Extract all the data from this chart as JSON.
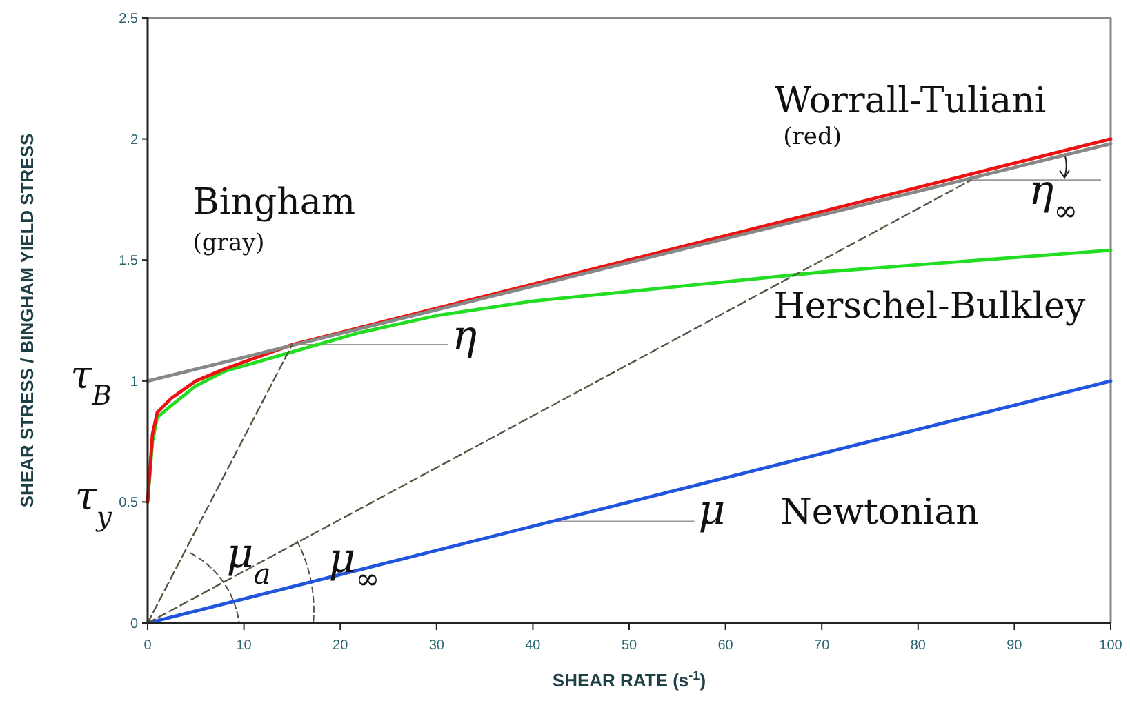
{
  "chart_data": {
    "type": "line",
    "xlabel": "SHEAR RATE (s$^{-1}$)",
    "ylabel": "SHEAR STRESS / BINGHAM YIELD STRESS",
    "xlim": [
      0,
      100
    ],
    "ylim": [
      0,
      2.5
    ],
    "xticks": [
      0,
      10,
      20,
      30,
      40,
      50,
      60,
      70,
      80,
      90,
      100
    ],
    "yticks": [
      0,
      0.5,
      1,
      1.5,
      2,
      2.5
    ],
    "grid": false,
    "marker": "none",
    "series": [
      {
        "name": "Herschel-Bulkley",
        "color": "#22dd22",
        "x": [
          0,
          0.5,
          1,
          2.5,
          5,
          8,
          15,
          22,
          30,
          40,
          50,
          60,
          70,
          80,
          90,
          100
        ],
        "values": [
          0.5,
          0.75,
          0.85,
          0.9,
          0.98,
          1.04,
          1.12,
          1.2,
          1.27,
          1.33,
          1.37,
          1.41,
          1.45,
          1.48,
          1.51,
          1.54
        ]
      },
      {
        "name": "Worrall-Tuliani",
        "color": "#ee1111",
        "x": [
          0,
          0.5,
          1,
          2.5,
          5,
          8,
          15,
          20,
          30,
          50,
          70,
          100
        ],
        "values": [
          0.5,
          0.78,
          0.87,
          0.93,
          1.0,
          1.05,
          1.15,
          1.2,
          1.3,
          1.5,
          1.7,
          2.0
        ]
      },
      {
        "name": "Bingham",
        "color": "#888888",
        "x": [
          0,
          100
        ],
        "values": [
          1,
          1.98
        ]
      },
      {
        "name": "Newtonian",
        "color": "#2255dd",
        "x": [
          0,
          100
        ],
        "values": [
          0,
          1
        ]
      },
      {
        "color": "#555540",
        "line_style": "dashed",
        "x": [
          0,
          15
        ],
        "values": [
          0,
          1.15
        ]
      },
      {
        "color": "#555540",
        "line_style": "dashed",
        "x": [
          0,
          85.5
        ],
        "values": [
          0,
          1.83
        ]
      }
    ],
    "annotations": [
      "(gray)",
      "(red)",
      {
        "text": "η",
        "x": 15.5,
        "y": 1.15
      },
      "η$_{∞}$",
      {
        "text": "μ",
        "x": 42,
        "y": 0.42
      },
      "μ$_{a}$",
      "μ$_{∞}$",
      "τ$_{B}$",
      "τ$_{y}$"
    ]
  }
}
